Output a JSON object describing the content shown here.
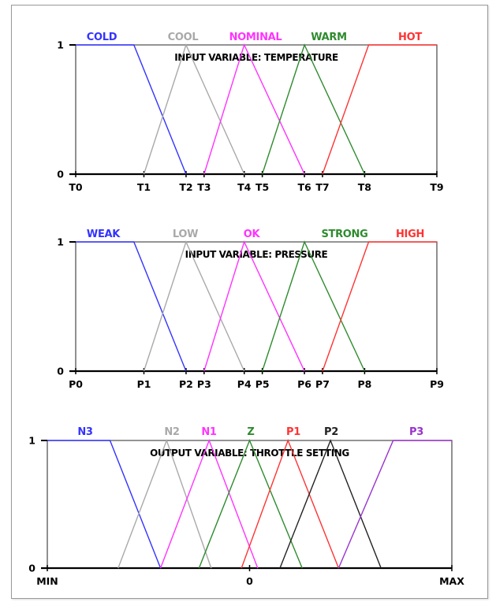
{
  "window": {
    "corner_tag": ""
  },
  "chart_data": [
    {
      "type": "line",
      "title": "INPUT VARIABLE: TEMPERATURE",
      "xlabel": "",
      "ylabel": "",
      "xlim": [
        0,
        9
      ],
      "ylim": [
        0,
        1
      ],
      "grid": false,
      "legend_placement": "top",
      "x_ticks": [
        {
          "label": "T0",
          "x": 0
        },
        {
          "label": "T1",
          "x": 1.7
        },
        {
          "label": "T2",
          "x": 2.75
        },
        {
          "label": "T3",
          "x": 3.2
        },
        {
          "label": "T4",
          "x": 4.2
        },
        {
          "label": "T5",
          "x": 4.65
        },
        {
          "label": "T6",
          "x": 5.7
        },
        {
          "label": "T7",
          "x": 6.15
        },
        {
          "label": "T8",
          "x": 7.2
        },
        {
          "label": "T9",
          "x": 9
        }
      ],
      "y_ticks": [
        {
          "label": "0",
          "y": 0
        },
        {
          "label": "1",
          "y": 1
        }
      ],
      "series": [
        {
          "name": "COLD",
          "color": "#3333ff",
          "points": [
            [
              0,
              1
            ],
            [
              1.45,
              1
            ],
            [
              2.75,
              0
            ]
          ]
        },
        {
          "name": "COOL",
          "color": "#a9a9a9",
          "points": [
            [
              1.7,
              0
            ],
            [
              2.75,
              1
            ],
            [
              4.2,
              0
            ]
          ]
        },
        {
          "name": "NOMINAL",
          "color": "#ff33ff",
          "points": [
            [
              3.2,
              0
            ],
            [
              4.2,
              1
            ],
            [
              5.7,
              0
            ]
          ]
        },
        {
          "name": "WARM",
          "color": "#2e8b2e",
          "points": [
            [
              4.65,
              0
            ],
            [
              5.7,
              1
            ],
            [
              7.2,
              0
            ]
          ]
        },
        {
          "name": "HOT",
          "color": "#ff3333",
          "points": [
            [
              6.15,
              0
            ],
            [
              7.3,
              1
            ],
            [
              9,
              1
            ]
          ]
        }
      ]
    },
    {
      "type": "line",
      "title": "INPUT VARIABLE: PRESSURE",
      "xlabel": "",
      "ylabel": "",
      "xlim": [
        0,
        9
      ],
      "ylim": [
        0,
        1
      ],
      "grid": false,
      "legend_placement": "top",
      "x_ticks": [
        {
          "label": "P0",
          "x": 0
        },
        {
          "label": "P1",
          "x": 1.7
        },
        {
          "label": "P2",
          "x": 2.75
        },
        {
          "label": "P3",
          "x": 3.2
        },
        {
          "label": "P4",
          "x": 4.2
        },
        {
          "label": "P5",
          "x": 4.65
        },
        {
          "label": "P6",
          "x": 5.7
        },
        {
          "label": "P7",
          "x": 6.15
        },
        {
          "label": "P8",
          "x": 7.2
        },
        {
          "label": "P9",
          "x": 9
        }
      ],
      "y_ticks": [
        {
          "label": "0",
          "y": 0
        },
        {
          "label": "1",
          "y": 1
        }
      ],
      "series": [
        {
          "name": "WEAK",
          "color": "#3333ff",
          "points": [
            [
              0,
              1
            ],
            [
              1.45,
              1
            ],
            [
              2.75,
              0
            ]
          ]
        },
        {
          "name": "LOW",
          "color": "#a9a9a9",
          "points": [
            [
              1.7,
              0
            ],
            [
              2.75,
              1
            ],
            [
              4.2,
              0
            ]
          ]
        },
        {
          "name": "OK",
          "color": "#ff33ff",
          "points": [
            [
              3.2,
              0
            ],
            [
              4.2,
              1
            ],
            [
              5.7,
              0
            ]
          ]
        },
        {
          "name": "STRONG",
          "color": "#2e8b2e",
          "points": [
            [
              4.65,
              0
            ],
            [
              5.7,
              1
            ],
            [
              7.2,
              0
            ]
          ]
        },
        {
          "name": "HIGH",
          "color": "#ff3333",
          "points": [
            [
              6.15,
              0
            ],
            [
              7.3,
              1
            ],
            [
              9,
              1
            ]
          ]
        }
      ]
    },
    {
      "type": "line",
      "title": "OUTPUT VARIABLE: THROTTLE SETTING",
      "xlabel": "",
      "ylabel": "",
      "xlim": [
        -1,
        1
      ],
      "ylim": [
        0,
        1
      ],
      "grid": false,
      "legend_placement": "top",
      "x_ticks": [
        {
          "label": "MIN",
          "x": -1
        },
        {
          "label": "0",
          "x": 0
        },
        {
          "label": "MAX",
          "x": 1
        }
      ],
      "y_ticks": [
        {
          "label": "0",
          "y": 0
        },
        {
          "label": "1",
          "y": 1
        }
      ],
      "series": [
        {
          "name": "N3",
          "color": "#3333ff",
          "points": [
            [
              -1,
              1
            ],
            [
              -0.69,
              1
            ],
            [
              -0.44,
              0
            ]
          ]
        },
        {
          "name": "N2",
          "color": "#a9a9a9",
          "points": [
            [
              -0.65,
              0
            ],
            [
              -0.41,
              1
            ],
            [
              -0.19,
              0
            ]
          ]
        },
        {
          "name": "N1",
          "color": "#ff33ff",
          "points": [
            [
              -0.44,
              0
            ],
            [
              -0.2,
              1
            ],
            [
              0.04,
              0
            ]
          ]
        },
        {
          "name": "Z",
          "color": "#2e8b2e",
          "points": [
            [
              -0.25,
              0
            ],
            [
              0,
              1
            ],
            [
              0.26,
              0
            ]
          ]
        },
        {
          "name": "P1",
          "color": "#ff3333",
          "points": [
            [
              -0.04,
              0
            ],
            [
              0.19,
              1
            ],
            [
              0.44,
              0
            ]
          ]
        },
        {
          "name": "P2",
          "color": "#222222",
          "points": [
            [
              0.15,
              0
            ],
            [
              0.4,
              1
            ],
            [
              0.65,
              0
            ]
          ]
        },
        {
          "name": "P3",
          "color": "#9933cc",
          "points": [
            [
              0.44,
              0
            ],
            [
              0.71,
              1
            ],
            [
              1,
              1
            ]
          ]
        }
      ]
    }
  ]
}
